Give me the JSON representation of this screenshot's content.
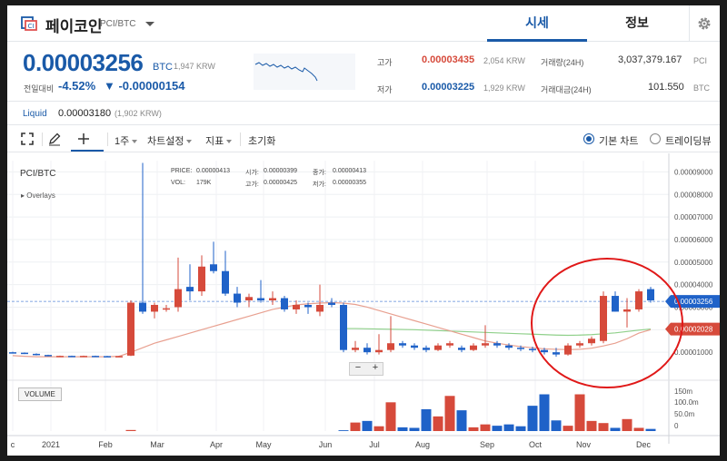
{
  "header": {
    "coin_name": "페이코인",
    "pair": "PCI/BTC",
    "tabs": [
      {
        "label": "시세",
        "active": true
      },
      {
        "label": "정보",
        "active": false
      }
    ]
  },
  "price": {
    "current": "0.00003256",
    "unit": "BTC",
    "krw": "1,947 KRW",
    "change_label": "전일대비",
    "change_pct": "-4.52%",
    "change_abs": "▼ -0.00000154"
  },
  "stats": {
    "high_label": "고가",
    "high_value": "0.00003435",
    "high_krw": "2,054 KRW",
    "low_label": "저가",
    "low_value": "0.00003225",
    "low_krw": "1,929 KRW",
    "volume_label": "거래량(24H)",
    "volume_value": "3,037,379.167",
    "volume_unit": "PCI",
    "amount_label": "거래대금(24H)",
    "amount_value": "101.550",
    "amount_unit": "BTC"
  },
  "liquid": {
    "label": "Liquid",
    "value": "0.00003180",
    "krw": "(1,902 KRW)"
  },
  "toolbar": {
    "interval": "1주",
    "chart_settings": "차트설정",
    "indicators": "지표",
    "reset": "초기화",
    "radio_basic": "기본 차트",
    "radio_trading": "트레이딩뷰"
  },
  "chart_info": {
    "pair": "PCI/BTC",
    "overlays": "Overlays",
    "price_lbl": "PRICE:",
    "price_val": "0.00000413",
    "open_lbl": "시가:",
    "open_val": "0.00000399",
    "close_lbl": "종가:",
    "close_val": "0.00000413",
    "vol_lbl": "VOL:",
    "vol_val": "179K",
    "high_lbl": "고가:",
    "high_val": "0.00000425",
    "low_lbl": "저가:",
    "low_val": "0.00000355",
    "volume_badge": "VOLUME",
    "zoom_minus": "−",
    "zoom_plus": "+"
  },
  "colors": {
    "up": "#d64a3b",
    "down": "#1f62c8",
    "ma_short": "#e8a090",
    "ma_long": "#8fd08a",
    "highlight": "#e01818",
    "accent": "#1a5aa8"
  },
  "chart_data": {
    "type": "candlestick",
    "y_ticks": [
      "0.00009000",
      "0.00008000",
      "0.00007000",
      "0.00006000",
      "0.00005000",
      "0.00004000",
      "0.00003000",
      "0.00002000",
      "0.00001000"
    ],
    "vol_ticks": [
      "150m",
      "100.0m",
      "50.0m",
      "0"
    ],
    "x_ticks": [
      "c",
      "2021",
      "Feb",
      "Mar",
      "Apr",
      "May",
      "Jun",
      "Jul",
      "Aug",
      "Sep",
      "Oct",
      "Nov",
      "Dec"
    ],
    "current_price_label": "0.00003256",
    "ma_price_label": "0.00002028",
    "ylim": [
      0,
      9.5e-05
    ],
    "candles": [
      [
        1e-05,
        1.02e-05,
        9.7e-06,
        9.8e-06
      ],
      [
        9.8e-06,
        9.9e-06,
        9.2e-06,
        9.3e-06
      ],
      [
        9.3e-06,
        9.5e-06,
        8.6e-06,
        8.8e-06
      ],
      [
        8.8e-06,
        8.9e-06,
        8.2e-06,
        8.3e-06
      ],
      [
        8.3e-06,
        8.5e-06,
        8.1e-06,
        8.4e-06
      ],
      [
        8.4e-06,
        8.5e-06,
        8.2e-06,
        8.3e-06
      ],
      [
        8.3e-06,
        8.5e-06,
        8.1e-06,
        8.4e-06
      ],
      [
        8.4e-06,
        8.5e-06,
        8.2e-06,
        8.3e-06
      ],
      [
        8.3e-06,
        8.4e-06,
        8.1e-06,
        8.2e-06
      ],
      [
        8.2e-06,
        8.4e-06,
        8.1e-06,
        8.3e-06
      ],
      [
        8.5e-06,
        3.3e-05,
        8.3e-06,
        3.2e-05
      ],
      [
        3.2e-05,
        9.4e-05,
        2.7e-05,
        2.8e-05
      ],
      [
        2.8e-05,
        3.2e-05,
        2.5e-05,
        3.1e-05
      ],
      [
        2.9e-05,
        3.1e-05,
        2.8e-05,
        2.95e-05
      ],
      [
        3e-05,
        5.2e-05,
        2.8e-05,
        3.8e-05
      ],
      [
        3.9e-05,
        4.9e-05,
        3.3e-05,
        3.7e-05
      ],
      [
        3.7e-05,
        5.3e-05,
        3.5e-05,
        4.8e-05
      ],
      [
        4.9e-05,
        5.9e-05,
        4.5e-05,
        4.6e-05
      ],
      [
        4.6e-05,
        5.5e-05,
        3.5e-05,
        3.6e-05
      ],
      [
        3.6e-05,
        3.9e-05,
        3e-05,
        3.2e-05
      ],
      [
        3.3e-05,
        3.6e-05,
        3e-05,
        3.45e-05
      ],
      [
        3.4e-05,
        4.2e-05,
        3.2e-05,
        3.3e-05
      ],
      [
        3.3e-05,
        3.7e-05,
        3.1e-05,
        3.4e-05
      ],
      [
        3.4e-05,
        3.5e-05,
        2.8e-05,
        2.9e-05
      ],
      [
        2.9e-05,
        3.3e-05,
        2.7e-05,
        3.1e-05
      ],
      [
        3.1e-05,
        3.2e-05,
        2.7e-05,
        3e-05
      ],
      [
        2.8e-05,
        4e-05,
        2.6e-05,
        3.1e-05
      ],
      [
        3.2e-05,
        3.4e-05,
        3e-05,
        3.1e-05
      ],
      [
        3.1e-05,
        3.2e-05,
        1e-05,
        1.1e-05
      ],
      [
        1.1e-05,
        1.5e-05,
        1e-05,
        1.2e-05
      ],
      [
        1.2e-05,
        1.4e-05,
        9e-06,
        1e-05
      ],
      [
        1e-05,
        1.8e-05,
        9e-06,
        1.1e-05
      ],
      [
        1.1e-05,
        2.6e-05,
        1e-05,
        1.4e-05
      ],
      [
        1.4e-05,
        1.5e-05,
        1.2e-05,
        1.3e-05
      ],
      [
        1.3e-05,
        1.4e-05,
        1.1e-05,
        1.2e-05
      ],
      [
        1.2e-05,
        1.3e-05,
        1e-05,
        1.1e-05
      ],
      [
        1.1e-05,
        1.4e-05,
        1.05e-05,
        1.3e-05
      ],
      [
        1.3e-05,
        1.5e-05,
        1.2e-05,
        1.4e-05
      ],
      [
        1.2e-05,
        1.3e-05,
        1e-05,
        1.1e-05
      ],
      [
        1.1e-05,
        1.4e-05,
        1.05e-05,
        1.3e-05
      ],
      [
        1.3e-05,
        2.2e-05,
        1.2e-05,
        1.4e-05
      ],
      [
        1.4e-05,
        1.5e-05,
        1.2e-05,
        1.3e-05
      ],
      [
        1.3e-05,
        1.4e-05,
        1.1e-05,
        1.2e-05
      ],
      [
        1.2e-05,
        1.3e-05,
        1.05e-05,
        1.15e-05
      ],
      [
        1.15e-05,
        1.25e-05,
        1e-05,
        1.1e-05
      ],
      [
        1.1e-05,
        1.2e-05,
        9e-06,
        1e-05
      ],
      [
        1e-05,
        1.2e-05,
        8e-06,
        9e-06
      ],
      [
        9e-06,
        1.4e-05,
        8.5e-06,
        1.3e-05
      ],
      [
        1.3e-05,
        1.5e-05,
        1.2e-05,
        1.4e-05
      ],
      [
        1.4e-05,
        1.7e-05,
        1.3e-05,
        1.6e-05
      ],
      [
        1.5e-05,
        3.7e-05,
        1.4e-05,
        3.5e-05
      ],
      [
        3.5e-05,
        3.7e-05,
        2.8e-05,
        2.8e-05
      ],
      [
        2.8e-05,
        3.4e-05,
        2.1e-05,
        2.9e-05
      ],
      [
        2.9e-05,
        3.8e-05,
        2.8e-05,
        3.7e-05
      ],
      [
        3.8e-05,
        3.9e-05,
        3.2e-05,
        3.3e-05
      ]
    ],
    "volume": [
      0,
      0,
      0,
      0,
      0,
      0,
      0,
      0,
      0,
      0,
      4,
      0,
      0,
      0,
      0,
      0,
      0,
      0,
      0,
      0,
      0,
      0,
      0,
      0,
      0,
      0,
      0,
      0,
      3,
      32,
      38,
      18,
      108,
      14,
      12,
      82,
      55,
      132,
      78,
      14,
      25,
      20,
      25,
      18,
      95,
      138,
      40,
      20,
      138,
      38,
      30,
      12,
      45,
      12,
      8
    ],
    "ma_short": [
      8.5e-06,
      8.2e-06,
      8e-06,
      8e-06,
      8e-06,
      8e-06,
      8e-06,
      8e-06,
      8e-06,
      8.2e-06,
      1e-05,
      1.2e-05,
      1.4e-05,
      1.55e-05,
      1.7e-05,
      1.85e-05,
      2e-05,
      2.15e-05,
      2.3e-05,
      2.45e-05,
      2.6e-05,
      2.75e-05,
      2.9e-05,
      3e-05,
      3.1e-05,
      3.15e-05,
      3.18e-05,
      3.2e-05,
      3.18e-05,
      3.12e-05,
      3e-05,
      2.85e-05,
      2.7e-05,
      2.55e-05,
      2.4e-05,
      2.25e-05,
      2.1e-05,
      1.95e-05,
      1.8e-05,
      1.65e-05,
      1.5e-05,
      1.4e-05,
      1.32e-05,
      1.25e-05,
      1.2e-05,
      1.15e-05,
      1.13e-05,
      1.12e-05,
      1.13e-05,
      1.18e-05,
      1.28e-05,
      1.4e-05,
      1.6e-05,
      1.85e-05,
      2e-05
    ],
    "ma_long": [
      null,
      null,
      null,
      null,
      null,
      null,
      null,
      null,
      null,
      null,
      null,
      null,
      null,
      null,
      null,
      null,
      null,
      null,
      null,
      null,
      null,
      null,
      null,
      null,
      null,
      null,
      null,
      null,
      2.05e-05,
      2.05e-05,
      2.04e-05,
      2.03e-05,
      2.02e-05,
      2.01e-05,
      2e-05,
      1.98e-05,
      1.96e-05,
      1.94e-05,
      1.92e-05,
      1.9e-05,
      1.88e-05,
      1.86e-05,
      1.84e-05,
      1.82e-05,
      1.8e-05,
      1.78e-05,
      1.76e-05,
      1.75e-05,
      1.76e-05,
      1.78e-05,
      1.82e-05,
      1.86e-05,
      1.92e-05,
      1.98e-05,
      2.03e-05
    ]
  }
}
